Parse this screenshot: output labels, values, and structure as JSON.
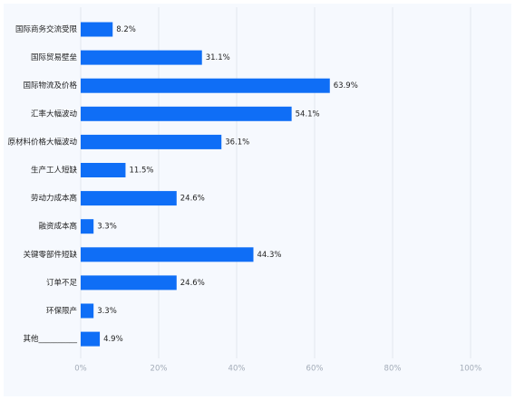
{
  "chart_data": {
    "type": "bar",
    "orientation": "horizontal",
    "categories": [
      "国际商务交流受限",
      "国际贸易壁垒",
      "国际物流及价格",
      "汇率大幅波动",
      "原材料价格大幅波动",
      "生产工人短缺",
      "劳动力成本高",
      "融资成本高",
      "关键零部件短缺",
      "订单不足",
      "环保限产",
      "其他__________"
    ],
    "values": [
      8.2,
      31.1,
      63.9,
      54.1,
      36.1,
      11.5,
      24.6,
      3.3,
      44.3,
      24.6,
      3.3,
      4.9
    ],
    "value_labels": [
      "8.2%",
      "31.1%",
      "63.9%",
      "54.1%",
      "36.1%",
      "11.5%",
      "24.6%",
      "3.3%",
      "44.3%",
      "24.6%",
      "3.3%",
      "4.9%"
    ],
    "xlim": [
      0,
      100
    ],
    "x_ticks": [
      0,
      20,
      40,
      60,
      80,
      100
    ],
    "x_tick_labels": [
      "0%",
      "20%",
      "40%",
      "60%",
      "80%",
      "100%"
    ],
    "grid": true,
    "bar_color": "#0f6ef6",
    "grid_color": "#e3e7ed",
    "tick_label_color": "#a3acb8",
    "label_color": "#222222"
  }
}
